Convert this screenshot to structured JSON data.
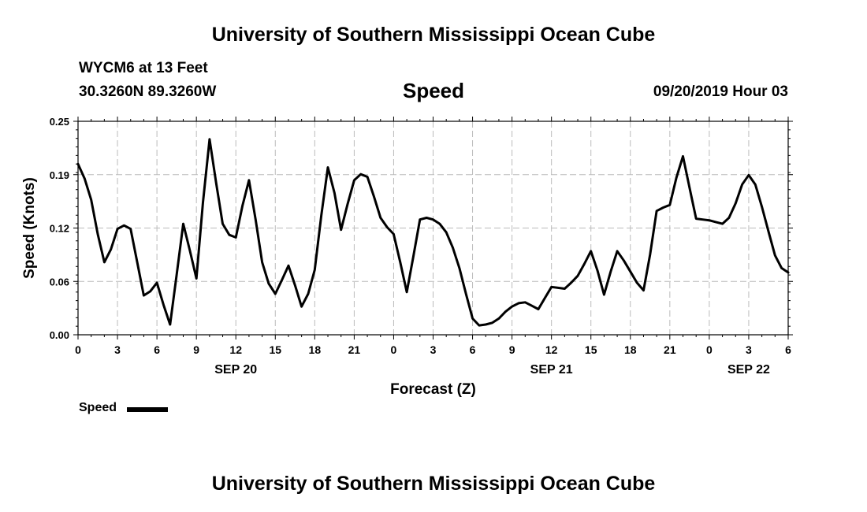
{
  "header": {
    "title": "University of Southern Mississippi Ocean Cube",
    "station": "WYCM6 at 13 Feet",
    "coords": "30.3260N 89.3260W",
    "chart_title": "Speed",
    "datetime": "09/20/2019 Hour 03"
  },
  "footer": {
    "title": "University of Southern Mississippi Ocean Cube"
  },
  "chart_data": {
    "type": "line",
    "title": "Speed",
    "xlabel": "Forecast (Z)",
    "ylabel": "Speed (Knots)",
    "ylim": [
      0,
      0.25
    ],
    "xlim": [
      0,
      54
    ],
    "x_unit": "forecast hour (0 = SEP 20 00Z)",
    "y_ticks": [
      "0.00",
      "0.06",
      "0.12",
      "0.19",
      "0.25"
    ],
    "y_tick_values": [
      0.0,
      0.0625,
      0.125,
      0.1875,
      0.25
    ],
    "x_ticks": [
      {
        "x": 0,
        "label": "0"
      },
      {
        "x": 3,
        "label": "3"
      },
      {
        "x": 6,
        "label": "6"
      },
      {
        "x": 9,
        "label": "9"
      },
      {
        "x": 12,
        "label": "12"
      },
      {
        "x": 15,
        "label": "15"
      },
      {
        "x": 18,
        "label": "18"
      },
      {
        "x": 21,
        "label": "21"
      },
      {
        "x": 24,
        "label": "0"
      },
      {
        "x": 27,
        "label": "3"
      },
      {
        "x": 30,
        "label": "6"
      },
      {
        "x": 33,
        "label": "9"
      },
      {
        "x": 36,
        "label": "12"
      },
      {
        "x": 39,
        "label": "15"
      },
      {
        "x": 42,
        "label": "18"
      },
      {
        "x": 45,
        "label": "21"
      },
      {
        "x": 48,
        "label": "0"
      },
      {
        "x": 51,
        "label": "3"
      },
      {
        "x": 54,
        "label": "6"
      }
    ],
    "date_labels": [
      {
        "x": 12,
        "label": "SEP 20"
      },
      {
        "x": 36,
        "label": "SEP 21"
      },
      {
        "x": 51,
        "label": "SEP 22"
      }
    ],
    "grid": true,
    "legend": {
      "position": "bottom-left",
      "entries": [
        {
          "name": "Speed",
          "color": "#000000"
        }
      ]
    },
    "series": [
      {
        "name": "Speed",
        "color": "#000000",
        "x": [
          0,
          0.5,
          1,
          1.5,
          2,
          2.5,
          3,
          3.5,
          4,
          4.5,
          5,
          5.5,
          6,
          6.5,
          7,
          7.5,
          8,
          8.5,
          9,
          9.5,
          10,
          10.5,
          11,
          11.5,
          12,
          12.5,
          13,
          13.5,
          14,
          14.5,
          15,
          15.5,
          16,
          16.5,
          17,
          17.5,
          18,
          18.5,
          19,
          19.5,
          20,
          20.5,
          21,
          21.5,
          22,
          22.5,
          23,
          23.5,
          24,
          24.5,
          25,
          25.5,
          26,
          26.5,
          27,
          27.5,
          28,
          28.5,
          29,
          29.5,
          30,
          30.5,
          31,
          31.5,
          32,
          32.5,
          33,
          33.5,
          34,
          34.5,
          35,
          35.5,
          36,
          36.5,
          37,
          37.5,
          38,
          38.5,
          39,
          39.5,
          40,
          40.5,
          41,
          41.5,
          42,
          42.5,
          43,
          43.5,
          44,
          44.5,
          45,
          45.5,
          46,
          46.5,
          47,
          47.5,
          48,
          48.5,
          49,
          49.5,
          50,
          50.5,
          51,
          51.5,
          52,
          52.5,
          53,
          53.5,
          54
        ],
        "values": [
          0.2,
          0.183,
          0.158,
          0.118,
          0.085,
          0.1,
          0.124,
          0.128,
          0.124,
          0.085,
          0.046,
          0.051,
          0.061,
          0.035,
          0.012,
          0.07,
          0.13,
          0.099,
          0.066,
          0.155,
          0.229,
          0.178,
          0.13,
          0.117,
          0.114,
          0.151,
          0.181,
          0.135,
          0.085,
          0.06,
          0.048,
          0.064,
          0.081,
          0.058,
          0.033,
          0.048,
          0.076,
          0.14,
          0.196,
          0.166,
          0.123,
          0.153,
          0.181,
          0.188,
          0.185,
          0.162,
          0.137,
          0.126,
          0.118,
          0.085,
          0.05,
          0.092,
          0.135,
          0.137,
          0.135,
          0.13,
          0.12,
          0.102,
          0.078,
          0.048,
          0.019,
          0.011,
          0.012,
          0.014,
          0.019,
          0.027,
          0.033,
          0.037,
          0.038,
          0.034,
          0.03,
          0.043,
          0.056,
          0.055,
          0.054,
          0.061,
          0.069,
          0.083,
          0.098,
          0.075,
          0.047,
          0.074,
          0.098,
          0.087,
          0.074,
          0.061,
          0.052,
          0.094,
          0.145,
          0.149,
          0.152,
          0.184,
          0.209,
          0.172,
          0.136,
          0.135,
          0.134,
          0.132,
          0.13,
          0.137,
          0.154,
          0.176,
          0.187,
          0.176,
          0.15,
          0.121,
          0.093,
          0.078,
          0.073
        ]
      }
    ]
  }
}
